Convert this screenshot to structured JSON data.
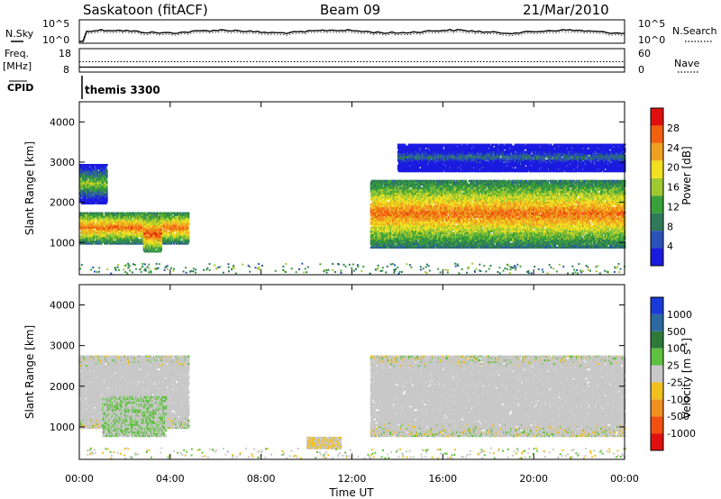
{
  "header": {
    "station": "Saskatoon (fitACF)",
    "beam": "Beam 09",
    "date": "21/Mar/2010"
  },
  "noise_panel": {
    "left_label": "N.Sky",
    "right_label": "N.Search",
    "left_ticks": [
      "10^5",
      "10^0"
    ],
    "right_ticks": [
      "10^5",
      "10^0"
    ]
  },
  "freq_panel": {
    "left_label_1": "Freq.",
    "left_label_2": "[MHz]",
    "left_ticks": [
      "18",
      "8"
    ],
    "right_label": "Nave",
    "right_ticks": [
      "60",
      "0"
    ]
  },
  "cpid_panel": {
    "label": "CPID",
    "value": "themis 3300"
  },
  "power_panel": {
    "ylabel": "Slant Range [km]",
    "y_ticks": [
      "4000",
      "3000",
      "2000",
      "1000"
    ],
    "colorbar_label": "Power [dB]",
    "colorbar_ticks": [
      "28",
      "24",
      "20",
      "16",
      "12",
      "8",
      "4"
    ],
    "colors": [
      "#1a1ae0",
      "#2a52b8",
      "#2e7a5a",
      "#3aa03a",
      "#a0c830",
      "#f0e020",
      "#f0a020",
      "#f06010",
      "#e01010"
    ]
  },
  "velocity_panel": {
    "ylabel": "Slant Range [km]",
    "y_ticks": [
      "4000",
      "3000",
      "2000",
      "1000"
    ],
    "colorbar_label": "Velocity [m s^-1]",
    "colorbar_ticks": [
      "1000",
      "500",
      "100",
      "25",
      "-25",
      "-100",
      "-500",
      "-1000"
    ],
    "colors": [
      "#1a3ad8",
      "#2a6aa0",
      "#2e7a3a",
      "#60c040",
      "#c8c8c8",
      "#f0c020",
      "#f09020",
      "#f05010",
      "#e01010"
    ]
  },
  "x_axis": {
    "label": "Time UT",
    "ticks": [
      "00:00",
      "04:00",
      "08:00",
      "12:00",
      "16:00",
      "20:00",
      "00:00"
    ]
  },
  "chart_data": {
    "type": "heatmap",
    "title": "Saskatoon (fitACF)",
    "subtitle": "Beam 09",
    "xlabel": "Time UT",
    "ylabel": "Slant Range [km]",
    "xlim_hours": [
      0,
      24
    ],
    "ylim_km": [
      200,
      4500
    ],
    "panels": [
      {
        "name": "Power [dB]",
        "range": [
          0,
          32
        ],
        "features": [
          {
            "t_start": 0.0,
            "t_end": 4.8,
            "range_km": [
              1000,
              1800
            ],
            "value": 26
          },
          {
            "t_start": 0.0,
            "t_end": 1.2,
            "range_km": [
              2000,
              3000
            ],
            "value": 16
          },
          {
            "t_start": 2.8,
            "t_end": 3.6,
            "range_km": [
              800,
              1700
            ],
            "value": 28
          },
          {
            "t_start": 12.8,
            "t_end": 24.0,
            "range_km": [
              900,
              2600
            ],
            "value": 26
          },
          {
            "t_start": 14.0,
            "t_end": 24.0,
            "range_km": [
              2800,
              3500
            ],
            "value": 8
          }
        ]
      },
      {
        "name": "Velocity [m s^-1]",
        "range": [
          -1000,
          1000
        ],
        "features": [
          {
            "t_start": 0.0,
            "t_end": 4.8,
            "range_km": [
              1000,
              2800
            ],
            "value": 0
          },
          {
            "t_start": 1.0,
            "t_end": 3.8,
            "range_km": [
              800,
              1800
            ],
            "value": 100
          },
          {
            "t_start": 10.0,
            "t_end": 11.5,
            "range_km": [
              500,
              800
            ],
            "value": -100
          },
          {
            "t_start": 12.8,
            "t_end": 24.0,
            "range_km": [
              800,
              2800
            ],
            "value": 0
          }
        ]
      }
    ]
  }
}
